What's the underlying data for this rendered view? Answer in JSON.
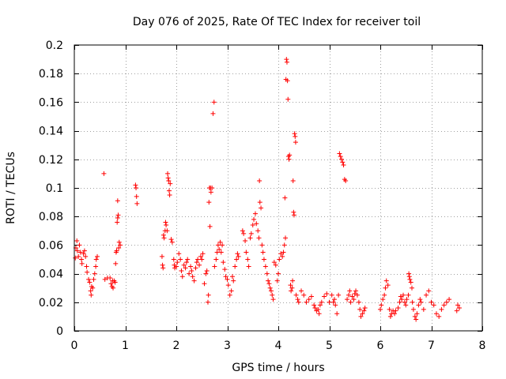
{
  "chart_data": {
    "type": "scatter",
    "title": "Day 076 of 2025, Rate Of TEC Index for receiver toil",
    "xlabel": "GPS time / hours",
    "ylabel": "ROTI / TECUs",
    "xlim": [
      0,
      8
    ],
    "ylim": [
      0,
      0.2
    ],
    "xticks": [
      0,
      1,
      2,
      3,
      4,
      5,
      6,
      7,
      8
    ],
    "yticks": [
      0,
      0.02,
      0.04,
      0.06,
      0.08,
      0.1,
      0.12,
      0.14,
      0.16,
      0.18,
      0.2
    ],
    "xtick_labels": [
      "0",
      "1",
      "2",
      "3",
      "4",
      "5",
      "6",
      "7",
      "8"
    ],
    "ytick_labels": [
      "0",
      "0.02",
      "0.04",
      "0.06",
      "0.08",
      "0.1",
      "0.12",
      "0.14",
      "0.16",
      "0.18",
      "0.2"
    ],
    "grid": true,
    "marker": "+",
    "color": "#ff0000",
    "series": [
      {
        "name": "ROTI",
        "points": [
          [
            0.02,
            0.051
          ],
          [
            0.03,
            0.058
          ],
          [
            0.05,
            0.063
          ],
          [
            0.06,
            0.056
          ],
          [
            0.08,
            0.052
          ],
          [
            0.1,
            0.06
          ],
          [
            0.12,
            0.055
          ],
          [
            0.14,
            0.05
          ],
          [
            0.15,
            0.047
          ],
          [
            0.18,
            0.054
          ],
          [
            0.2,
            0.056
          ],
          [
            0.22,
            0.052
          ],
          [
            0.24,
            0.045
          ],
          [
            0.25,
            0.041
          ],
          [
            0.28,
            0.036
          ],
          [
            0.3,
            0.034
          ],
          [
            0.32,
            0.028
          ],
          [
            0.33,
            0.025
          ],
          [
            0.34,
            0.031
          ],
          [
            0.36,
            0.03
          ],
          [
            0.38,
            0.036
          ],
          [
            0.4,
            0.04
          ],
          [
            0.42,
            0.045
          ],
          [
            0.43,
            0.05
          ],
          [
            0.45,
            0.052
          ],
          [
            0.58,
            0.11
          ],
          [
            0.6,
            0.036
          ],
          [
            0.65,
            0.037
          ],
          [
            0.7,
            0.037
          ],
          [
            0.72,
            0.033
          ],
          [
            0.74,
            0.031
          ],
          [
            0.75,
            0.035
          ],
          [
            0.76,
            0.03
          ],
          [
            0.78,
            0.035
          ],
          [
            0.8,
            0.034
          ],
          [
            0.81,
            0.047
          ],
          [
            0.82,
            0.055
          ],
          [
            0.83,
            0.056
          ],
          [
            0.84,
            0.076
          ],
          [
            0.85,
            0.079
          ],
          [
            0.86,
            0.081
          ],
          [
            0.85,
            0.091
          ],
          [
            0.87,
            0.058
          ],
          [
            0.88,
            0.062
          ],
          [
            0.9,
            0.06
          ],
          [
            1.2,
            0.102
          ],
          [
            1.21,
            0.1
          ],
          [
            1.22,
            0.094
          ],
          [
            1.23,
            0.089
          ],
          [
            1.72,
            0.052
          ],
          [
            1.73,
            0.046
          ],
          [
            1.74,
            0.044
          ],
          [
            1.75,
            0.067
          ],
          [
            1.76,
            0.065
          ],
          [
            1.78,
            0.07
          ],
          [
            1.79,
            0.076
          ],
          [
            1.8,
            0.074
          ],
          [
            1.82,
            0.07
          ],
          [
            1.83,
            0.11
          ],
          [
            1.84,
            0.107
          ],
          [
            1.85,
            0.105
          ],
          [
            1.86,
            0.098
          ],
          [
            1.87,
            0.095
          ],
          [
            1.88,
            0.103
          ],
          [
            1.9,
            0.064
          ],
          [
            1.92,
            0.062
          ],
          [
            1.95,
            0.05
          ],
          [
            1.96,
            0.046
          ],
          [
            1.97,
            0.044
          ],
          [
            2.0,
            0.045
          ],
          [
            2.02,
            0.048
          ],
          [
            2.05,
            0.054
          ],
          [
            2.08,
            0.05
          ],
          [
            2.1,
            0.042
          ],
          [
            2.12,
            0.038
          ],
          [
            2.15,
            0.046
          ],
          [
            2.18,
            0.044
          ],
          [
            2.2,
            0.048
          ],
          [
            2.22,
            0.05
          ],
          [
            2.25,
            0.04
          ],
          [
            2.28,
            0.045
          ],
          [
            2.3,
            0.042
          ],
          [
            2.32,
            0.038
          ],
          [
            2.35,
            0.035
          ],
          [
            2.38,
            0.044
          ],
          [
            2.4,
            0.048
          ],
          [
            2.42,
            0.05
          ],
          [
            2.45,
            0.046
          ],
          [
            2.48,
            0.052
          ],
          [
            2.5,
            0.05
          ],
          [
            2.52,
            0.054
          ],
          [
            2.55,
            0.033
          ],
          [
            2.58,
            0.04
          ],
          [
            2.6,
            0.042
          ],
          [
            2.62,
            0.02
          ],
          [
            2.63,
            0.025
          ],
          [
            2.64,
            0.09
          ],
          [
            2.65,
            0.1
          ],
          [
            2.66,
            0.073
          ],
          [
            2.67,
            0.1
          ],
          [
            2.68,
            0.097
          ],
          [
            2.7,
            0.1
          ],
          [
            2.72,
            0.152
          ],
          [
            2.74,
            0.16
          ],
          [
            2.75,
            0.045
          ],
          [
            2.78,
            0.05
          ],
          [
            2.8,
            0.055
          ],
          [
            2.82,
            0.06
          ],
          [
            2.84,
            0.057
          ],
          [
            2.86,
            0.062
          ],
          [
            2.88,
            0.055
          ],
          [
            2.9,
            0.06
          ],
          [
            2.92,
            0.048
          ],
          [
            2.95,
            0.043
          ],
          [
            2.97,
            0.038
          ],
          [
            3.0,
            0.036
          ],
          [
            3.02,
            0.032
          ],
          [
            3.05,
            0.025
          ],
          [
            3.08,
            0.028
          ],
          [
            3.1,
            0.038
          ],
          [
            3.12,
            0.035
          ],
          [
            3.15,
            0.045
          ],
          [
            3.18,
            0.05
          ],
          [
            3.2,
            0.054
          ],
          [
            3.22,
            0.052
          ],
          [
            3.3,
            0.07
          ],
          [
            3.32,
            0.068
          ],
          [
            3.35,
            0.063
          ],
          [
            3.37,
            0.055
          ],
          [
            3.4,
            0.05
          ],
          [
            3.42,
            0.045
          ],
          [
            3.45,
            0.065
          ],
          [
            3.47,
            0.068
          ],
          [
            3.5,
            0.074
          ],
          [
            3.52,
            0.078
          ],
          [
            3.55,
            0.082
          ],
          [
            3.57,
            0.075
          ],
          [
            3.6,
            0.07
          ],
          [
            3.62,
            0.065
          ],
          [
            3.63,
            0.105
          ],
          [
            3.64,
            0.09
          ],
          [
            3.66,
            0.086
          ],
          [
            3.68,
            0.06
          ],
          [
            3.7,
            0.055
          ],
          [
            3.72,
            0.05
          ],
          [
            3.75,
            0.045
          ],
          [
            3.78,
            0.04
          ],
          [
            3.8,
            0.035
          ],
          [
            3.82,
            0.033
          ],
          [
            3.84,
            0.03
          ],
          [
            3.86,
            0.028
          ],
          [
            3.88,
            0.025
          ],
          [
            3.9,
            0.022
          ],
          [
            3.92,
            0.048
          ],
          [
            3.95,
            0.046
          ],
          [
            3.98,
            0.035
          ],
          [
            4.0,
            0.04
          ],
          [
            4.02,
            0.05
          ],
          [
            4.05,
            0.054
          ],
          [
            4.08,
            0.052
          ],
          [
            4.1,
            0.055
          ],
          [
            4.12,
            0.06
          ],
          [
            4.13,
            0.093
          ],
          [
            4.14,
            0.065
          ],
          [
            4.15,
            0.176
          ],
          [
            4.16,
            0.19
          ],
          [
            4.17,
            0.188
          ],
          [
            4.18,
            0.175
          ],
          [
            4.19,
            0.162
          ],
          [
            4.2,
            0.122
          ],
          [
            4.21,
            0.12
          ],
          [
            4.22,
            0.123
          ],
          [
            4.24,
            0.032
          ],
          [
            4.25,
            0.028
          ],
          [
            4.27,
            0.03
          ],
          [
            4.28,
            0.035
          ],
          [
            4.29,
            0.105
          ],
          [
            4.3,
            0.083
          ],
          [
            4.31,
            0.081
          ],
          [
            4.32,
            0.138
          ],
          [
            4.33,
            0.136
          ],
          [
            4.34,
            0.132
          ],
          [
            4.35,
            0.025
          ],
          [
            4.38,
            0.022
          ],
          [
            4.4,
            0.02
          ],
          [
            4.45,
            0.028
          ],
          [
            4.5,
            0.025
          ],
          [
            4.55,
            0.02
          ],
          [
            4.6,
            0.022
          ],
          [
            4.65,
            0.024
          ],
          [
            4.7,
            0.018
          ],
          [
            4.72,
            0.016
          ],
          [
            4.75,
            0.014
          ],
          [
            4.78,
            0.015
          ],
          [
            4.8,
            0.012
          ],
          [
            4.82,
            0.018
          ],
          [
            4.85,
            0.02
          ],
          [
            4.9,
            0.024
          ],
          [
            4.95,
            0.026
          ],
          [
            5.0,
            0.02
          ],
          [
            5.05,
            0.025
          ],
          [
            5.08,
            0.02
          ],
          [
            5.1,
            0.022
          ],
          [
            5.12,
            0.018
          ],
          [
            5.15,
            0.012
          ],
          [
            5.18,
            0.025
          ],
          [
            5.2,
            0.124
          ],
          [
            5.22,
            0.122
          ],
          [
            5.24,
            0.12
          ],
          [
            5.26,
            0.118
          ],
          [
            5.28,
            0.116
          ],
          [
            5.3,
            0.106
          ],
          [
            5.32,
            0.105
          ],
          [
            5.35,
            0.022
          ],
          [
            5.38,
            0.025
          ],
          [
            5.4,
            0.028
          ],
          [
            5.42,
            0.02
          ],
          [
            5.45,
            0.024
          ],
          [
            5.48,
            0.022
          ],
          [
            5.5,
            0.026
          ],
          [
            5.52,
            0.028
          ],
          [
            5.55,
            0.025
          ],
          [
            5.58,
            0.02
          ],
          [
            5.6,
            0.015
          ],
          [
            5.62,
            0.01
          ],
          [
            5.65,
            0.012
          ],
          [
            5.68,
            0.014
          ],
          [
            5.7,
            0.016
          ],
          [
            6.0,
            0.015
          ],
          [
            6.02,
            0.018
          ],
          [
            6.05,
            0.022
          ],
          [
            6.08,
            0.025
          ],
          [
            6.1,
            0.03
          ],
          [
            6.12,
            0.035
          ],
          [
            6.15,
            0.032
          ],
          [
            6.18,
            0.015
          ],
          [
            6.2,
            0.01
          ],
          [
            6.22,
            0.012
          ],
          [
            6.25,
            0.014
          ],
          [
            6.28,
            0.012
          ],
          [
            6.3,
            0.014
          ],
          [
            6.35,
            0.016
          ],
          [
            6.38,
            0.02
          ],
          [
            6.4,
            0.024
          ],
          [
            6.42,
            0.022
          ],
          [
            6.45,
            0.025
          ],
          [
            6.48,
            0.02
          ],
          [
            6.5,
            0.018
          ],
          [
            6.52,
            0.022
          ],
          [
            6.55,
            0.025
          ],
          [
            6.56,
            0.04
          ],
          [
            6.57,
            0.038
          ],
          [
            6.58,
            0.036
          ],
          [
            6.6,
            0.034
          ],
          [
            6.62,
            0.03
          ],
          [
            6.63,
            0.02
          ],
          [
            6.65,
            0.015
          ],
          [
            6.68,
            0.01
          ],
          [
            6.7,
            0.008
          ],
          [
            6.72,
            0.012
          ],
          [
            6.75,
            0.018
          ],
          [
            6.78,
            0.022
          ],
          [
            6.8,
            0.02
          ],
          [
            6.85,
            0.015
          ],
          [
            6.9,
            0.025
          ],
          [
            6.95,
            0.028
          ],
          [
            7.0,
            0.02
          ],
          [
            7.05,
            0.018
          ],
          [
            7.1,
            0.012
          ],
          [
            7.15,
            0.01
          ],
          [
            7.2,
            0.015
          ],
          [
            7.25,
            0.018
          ],
          [
            7.3,
            0.02
          ],
          [
            7.35,
            0.022
          ],
          [
            7.5,
            0.014
          ],
          [
            7.52,
            0.018
          ],
          [
            7.55,
            0.016
          ]
        ]
      }
    ]
  }
}
